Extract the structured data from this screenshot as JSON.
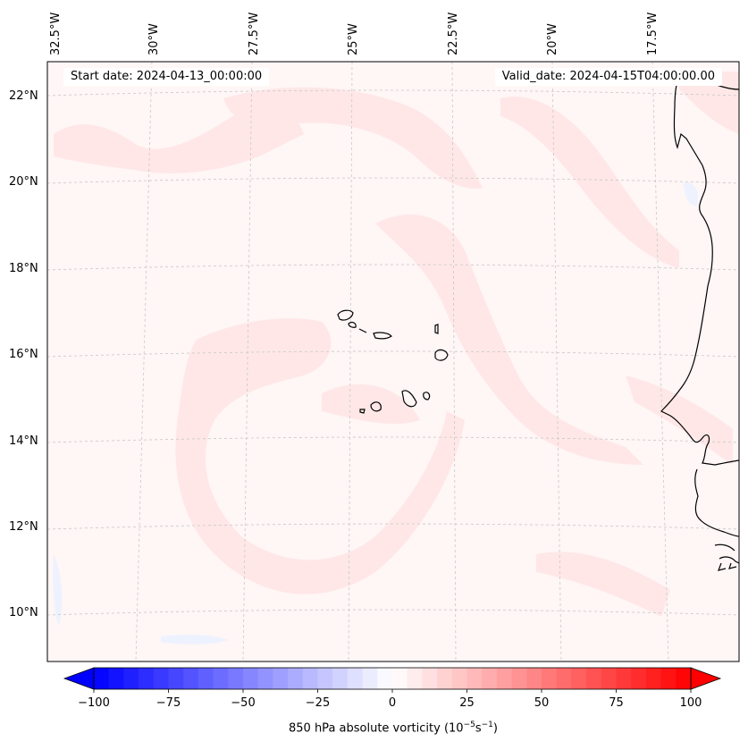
{
  "map": {
    "start_date": "Start date: 2024-04-13_00:00:00",
    "valid_date": "Valid_date: 2024-04-15T04:00:00.00",
    "lon_labels": [
      "32.5°W",
      "30°W",
      "27.5°W",
      "25°W",
      "22.5°W",
      "20°W",
      "17.5°W"
    ],
    "lat_labels": [
      "22°N",
      "20°N",
      "18°N",
      "16°N",
      "14°N",
      "12°N",
      "10°N"
    ],
    "field": "850 hPa absolute vorticity",
    "colors": {
      "negative": "#0000ff",
      "neutral": "#ffffff",
      "positive": "#ff0000",
      "coast": "#000000"
    }
  },
  "colorbar": {
    "label": "850 hPa absolute vorticity (10",
    "label_exp1": "−5",
    "label_mid": "s",
    "label_exp2": "−1",
    "label_end": ")",
    "range": [
      -100,
      100
    ],
    "ticks": [
      "−100",
      "−75",
      "−50",
      "−25",
      "0",
      "25",
      "50",
      "75",
      "100"
    ],
    "extend": "both"
  }
}
